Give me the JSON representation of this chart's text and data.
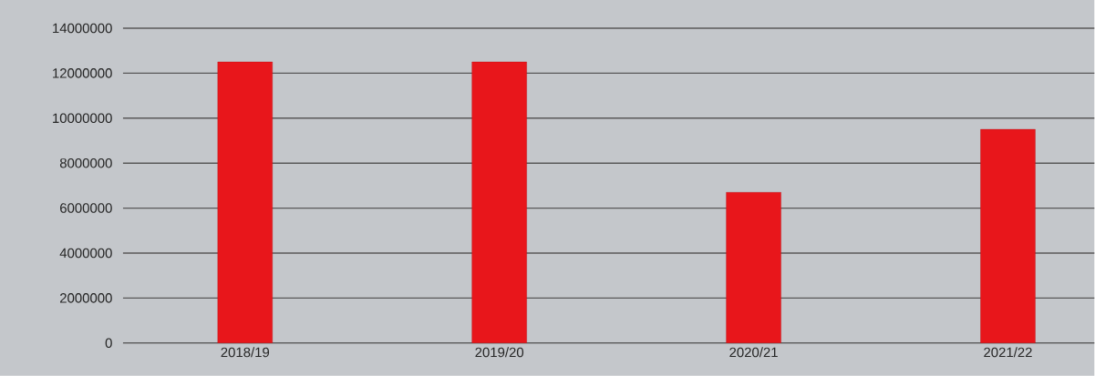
{
  "chart_data": {
    "type": "bar",
    "categories": [
      "2018/19",
      "2019/20",
      "2020/21",
      "2021/22"
    ],
    "values": [
      12500000,
      12500000,
      6700000,
      9500000
    ],
    "color": "#e8161b",
    "ylim": [
      0,
      14000000
    ],
    "yticks": [
      0,
      2000000,
      4000000,
      6000000,
      8000000,
      10000000,
      12000000,
      14000000
    ],
    "grid": "y"
  }
}
